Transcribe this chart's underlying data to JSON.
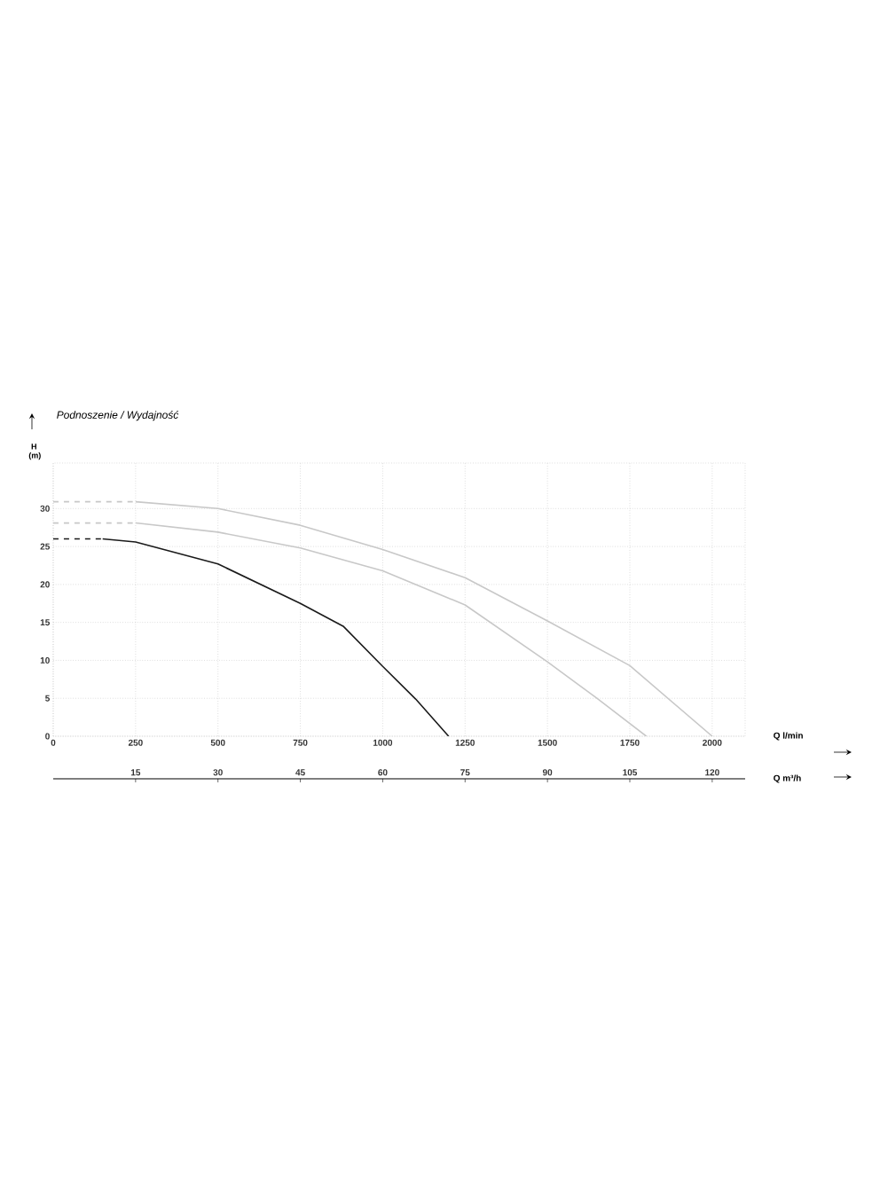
{
  "chart_data": {
    "type": "line",
    "title": "Podnoszenie / Wydajność",
    "xlabel": "Q l/min",
    "x2label": "Q m³/h",
    "ylabel": "H (m)",
    "xlim": [
      0,
      2100
    ],
    "xticks": [
      0,
      250,
      500,
      750,
      1000,
      1250,
      1500,
      1750,
      2000
    ],
    "x2lim": [
      0,
      126
    ],
    "x2ticks": [
      15,
      30,
      45,
      60,
      75,
      90,
      105,
      120
    ],
    "ylim": [
      0,
      36
    ],
    "yticks": [
      0,
      5,
      10,
      15,
      20,
      25,
      30
    ],
    "grid": true,
    "marker": "none",
    "series": [
      {
        "color": "#c8c8c8",
        "line_style": "dashed",
        "x": [
          0,
          250
        ],
        "values": [
          30.9,
          30.9
        ]
      },
      {
        "color": "#c8c8c8",
        "line_style": "solid",
        "x": [
          250,
          500,
          750,
          1000,
          1250,
          1500,
          1750,
          2000
        ],
        "values": [
          30.9,
          30.0,
          27.8,
          24.6,
          20.9,
          15.2,
          9.3,
          0
        ]
      },
      {
        "color": "#c8c8c8",
        "line_style": "dashed",
        "x": [
          0,
          250
        ],
        "values": [
          28.1,
          28.1
        ]
      },
      {
        "color": "#c8c8c8",
        "line_style": "solid",
        "x": [
          250,
          500,
          750,
          1000,
          1250,
          1500,
          1650,
          1800
        ],
        "values": [
          28.1,
          26.9,
          24.8,
          21.8,
          17.3,
          9.8,
          5,
          0
        ]
      },
      {
        "color": "#1a1a1a",
        "line_style": "dashed",
        "x": [
          0,
          150
        ],
        "values": [
          26.0,
          26.0
        ]
      },
      {
        "color": "#1a1a1a",
        "line_style": "solid",
        "x": [
          150,
          250,
          500,
          750,
          880,
          1000,
          1100,
          1200
        ],
        "values": [
          26.0,
          25.6,
          22.7,
          17.5,
          14.5,
          9.2,
          4.9,
          0
        ]
      }
    ]
  }
}
